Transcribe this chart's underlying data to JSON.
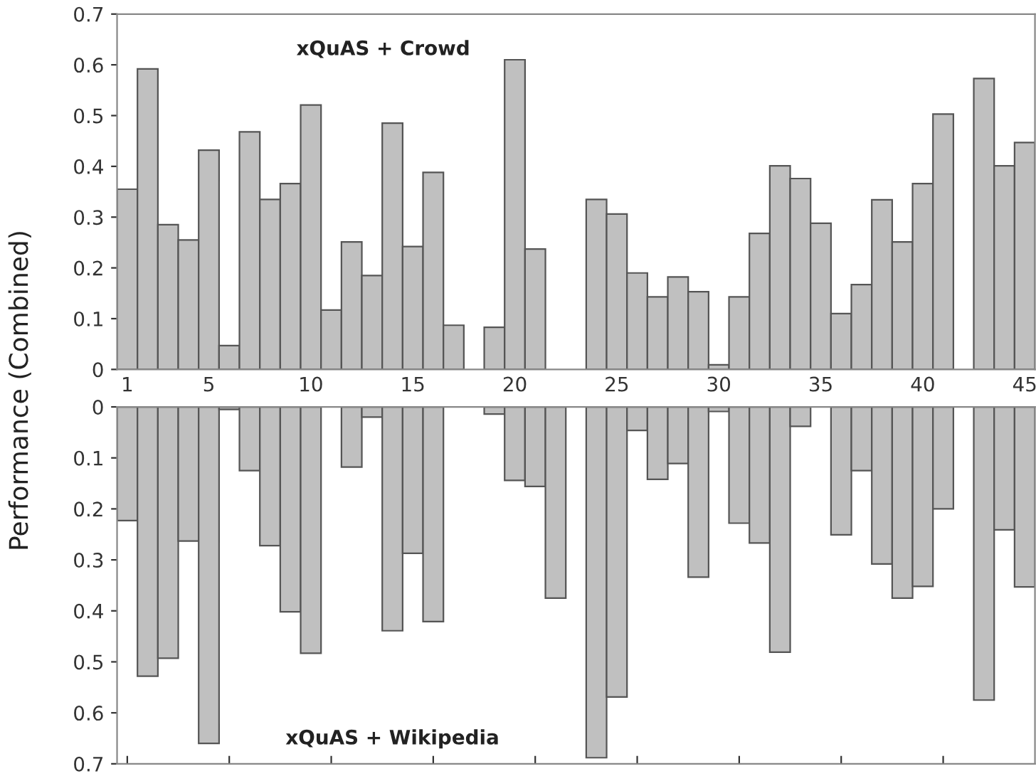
{
  "chart_data": [
    {
      "type": "bar",
      "ylabel": "Performance (Combined)",
      "annotations": [
        "xQuAS + Crowd"
      ],
      "color": "#c0c0c0",
      "x": [
        1,
        2,
        3,
        4,
        5,
        6,
        7,
        8,
        9,
        10,
        11,
        12,
        13,
        14,
        15,
        16,
        17,
        18,
        19,
        20,
        21,
        22,
        23,
        24,
        25,
        26,
        27,
        28,
        29,
        30,
        31,
        32,
        33,
        34,
        35,
        36,
        37,
        38,
        39,
        40,
        41,
        42,
        43,
        44,
        45
      ],
      "values": [
        0.355,
        0.592,
        0.285,
        0.255,
        0.432,
        0.047,
        0.468,
        0.335,
        0.366,
        0.521,
        0.117,
        0.251,
        0.185,
        0.485,
        0.242,
        0.388,
        0.087,
        null,
        0.083,
        0.61,
        0.237,
        null,
        null,
        0.335,
        0.306,
        0.19,
        0.143,
        0.182,
        0.153,
        0.009,
        0.143,
        0.268,
        0.401,
        0.376,
        0.288,
        0.11,
        0.167,
        0.334,
        0.251,
        0.366,
        0.503,
        null,
        0.573,
        0.401,
        0.447
      ],
      "xlim": [
        0.5,
        45.5
      ],
      "xticks": [
        1,
        5,
        10,
        15,
        20,
        25,
        30,
        35,
        40,
        45
      ],
      "ylim": [
        0,
        0.7
      ],
      "yticks": [
        0,
        0.1,
        0.2,
        0.3,
        0.4,
        0.5,
        0.6,
        0.7
      ],
      "grid": false,
      "legend": false
    },
    {
      "type": "bar",
      "annotations": [
        "xQuAS + Wikipedia"
      ],
      "color": "#c0c0c0",
      "x": [
        1,
        2,
        3,
        4,
        5,
        6,
        7,
        8,
        9,
        10,
        11,
        12,
        13,
        14,
        15,
        16,
        17,
        18,
        19,
        20,
        21,
        22,
        23,
        24,
        25,
        26,
        27,
        28,
        29,
        30,
        31,
        32,
        33,
        34,
        35,
        36,
        37,
        38,
        39,
        40,
        41,
        42,
        43,
        44,
        45
      ],
      "values": [
        0.223,
        0.528,
        0.493,
        0.263,
        0.66,
        0.005,
        0.125,
        0.272,
        0.402,
        0.483,
        null,
        0.118,
        0.02,
        0.439,
        0.287,
        0.421,
        null,
        null,
        0.014,
        0.144,
        0.156,
        0.375,
        null,
        0.688,
        0.569,
        0.046,
        0.142,
        0.111,
        0.334,
        0.009,
        0.228,
        0.267,
        0.481,
        0.038,
        null,
        0.251,
        0.125,
        0.308,
        0.375,
        0.352,
        0.2,
        null,
        0.575,
        0.241,
        0.353
      ],
      "xlim": [
        0.5,
        45.5
      ],
      "xticks": [
        {
          "value": 1,
          "label": null
        },
        {
          "value": 6,
          "label": null
        },
        {
          "value": 11,
          "label": null
        },
        {
          "value": 16,
          "label": null
        },
        {
          "value": 21,
          "label": null
        },
        {
          "value": 26,
          "label": null
        },
        {
          "value": 31,
          "label": null
        },
        {
          "value": 36,
          "label": null
        },
        {
          "value": 41,
          "label": null
        }
      ],
      "ylim": [
        0.7,
        0
      ],
      "yticks": [
        0,
        0.1,
        0.2,
        0.3,
        0.4,
        0.5,
        0.6,
        0.7
      ],
      "tick_labels": "y",
      "grid": false,
      "legend": false
    }
  ]
}
